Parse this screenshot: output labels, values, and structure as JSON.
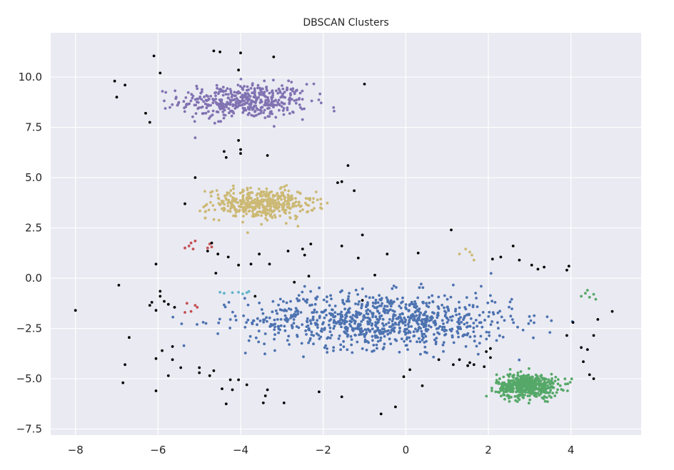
{
  "chart_data": {
    "type": "scatter",
    "title": "DBSCAN Clusters",
    "xlabel": "",
    "ylabel": "",
    "xlim": [
      -8.6,
      5.7
    ],
    "ylim": [
      -7.8,
      12.2
    ],
    "xticks": [
      -8,
      -6,
      -4,
      -2,
      0,
      2,
      4
    ],
    "yticks": [
      -7.5,
      -5.0,
      -2.5,
      0.0,
      2.5,
      5.0,
      7.5,
      10.0
    ],
    "xtick_labels": [
      "−8",
      "−6",
      "−4",
      "−2",
      "0",
      "2",
      "4"
    ],
    "ytick_labels": [
      "−7.5",
      "−5.0",
      "−2.5",
      "0.0",
      "2.5",
      "5.0",
      "7.5",
      "10.0"
    ],
    "grid": true,
    "background": "#eaeaf2",
    "legend": "none",
    "clusters": [
      {
        "color": "#8172b2",
        "center": [
          -3.9,
          8.8
        ],
        "spread": [
          1.25,
          0.7
        ],
        "count": 450,
        "xrange": [
          -6.4,
          -1.5
        ],
        "yrange": [
          6.7,
          10.7
        ]
      },
      {
        "color": "#ccb974",
        "center": [
          -3.5,
          3.7
        ],
        "spread": [
          1.05,
          0.6
        ],
        "count": 420,
        "xrange": [
          -5.0,
          -1.9
        ],
        "yrange": [
          2.1,
          5.7
        ]
      },
      {
        "color": "#4c72b0",
        "center": [
          -0.6,
          -2.1
        ],
        "spread": [
          2.6,
          1.1
        ],
        "count": 900,
        "xrange": [
          -5.7,
          4.1
        ],
        "yrange": [
          -5.9,
          0.8
        ]
      },
      {
        "color": "#55a868",
        "center": [
          2.95,
          -5.35
        ],
        "spread": [
          0.6,
          0.48
        ],
        "count": 500,
        "xrange": [
          1.0,
          4.6
        ],
        "yrange": [
          -6.8,
          -3.9
        ]
      }
    ],
    "small_clusters": [
      {
        "color": "#c44e52",
        "points": [
          [
            -5.35,
            1.5
          ],
          [
            -5.25,
            1.6
          ],
          [
            -5.2,
            1.75
          ],
          [
            -5.1,
            1.85
          ],
          [
            -5.15,
            1.45
          ],
          [
            -4.8,
            1.5
          ],
          [
            -4.75,
            1.7
          ],
          [
            -4.7,
            1.55
          ],
          [
            -5.3,
            -1.25
          ],
          [
            -5.35,
            -1.7
          ],
          [
            -5.2,
            -1.65
          ],
          [
            -5.1,
            -1.35
          ],
          [
            -5.05,
            -1.45
          ]
        ]
      },
      {
        "color": "#64b5cd",
        "points": [
          [
            -4.5,
            -0.7
          ],
          [
            -4.4,
            -0.75
          ],
          [
            -4.2,
            -0.72
          ],
          [
            -4.05,
            -0.7
          ],
          [
            -3.95,
            -0.78
          ],
          [
            -3.85,
            -0.72
          ],
          [
            -3.8,
            -0.66
          ]
        ]
      },
      {
        "color": "#ccb974",
        "points": [
          [
            1.3,
            1.2
          ],
          [
            1.45,
            1.45
          ],
          [
            1.55,
            1.3
          ],
          [
            1.6,
            1.15
          ],
          [
            1.65,
            0.9
          ]
        ]
      },
      {
        "color": "#55a868",
        "points": [
          [
            4.25,
            -0.9
          ],
          [
            4.35,
            -0.75
          ],
          [
            4.4,
            -0.6
          ],
          [
            4.45,
            -0.95
          ],
          [
            4.55,
            -0.8
          ],
          [
            4.6,
            -1.05
          ]
        ]
      }
    ],
    "noise": {
      "color": "#000000",
      "points": [
        [
          -8.0,
          -1.6
        ],
        [
          -7.05,
          9.8
        ],
        [
          -7.0,
          9.0
        ],
        [
          -6.8,
          9.6
        ],
        [
          -6.95,
          -0.35
        ],
        [
          -6.7,
          -2.95
        ],
        [
          -6.85,
          -5.2
        ],
        [
          -6.8,
          -4.3
        ],
        [
          -6.1,
          11.05
        ],
        [
          -5.95,
          10.2
        ],
        [
          -6.3,
          8.2
        ],
        [
          -6.2,
          7.75
        ],
        [
          -6.05,
          0.7
        ],
        [
          -6.2,
          -1.35
        ],
        [
          -6.15,
          -1.2
        ],
        [
          -6.05,
          -1.6
        ],
        [
          -5.95,
          -0.65
        ],
        [
          -5.95,
          -0.9
        ],
        [
          -5.85,
          -1.15
        ],
        [
          -5.75,
          -1.3
        ],
        [
          -5.6,
          -1.45
        ],
        [
          -6.05,
          -4.0
        ],
        [
          -5.9,
          -3.6
        ],
        [
          -5.65,
          -3.4
        ],
        [
          -5.65,
          -4.05
        ],
        [
          -5.45,
          -4.45
        ],
        [
          -5.75,
          -4.85
        ],
        [
          -6.05,
          -5.6
        ],
        [
          -5.1,
          5.0
        ],
        [
          -5.35,
          3.7
        ],
        [
          -4.7,
          1.75
        ],
        [
          -4.8,
          1.35
        ],
        [
          -4.6,
          0.25
        ],
        [
          -4.55,
          1.2
        ],
        [
          -4.3,
          1.05
        ],
        [
          -4.05,
          0.65
        ],
        [
          -5.0,
          -4.45
        ],
        [
          -5.0,
          -4.7
        ],
        [
          -4.75,
          -4.85
        ],
        [
          -4.65,
          -4.6
        ],
        [
          -4.45,
          -5.5
        ],
        [
          -4.35,
          -6.25
        ],
        [
          -4.2,
          -5.55
        ],
        [
          -4.25,
          -5.05
        ],
        [
          -4.05,
          -5.05
        ],
        [
          -3.85,
          -5.3
        ],
        [
          -3.35,
          -5.55
        ],
        [
          -3.4,
          -5.85
        ],
        [
          -3.45,
          -6.2
        ],
        [
          -2.95,
          -6.2
        ],
        [
          -4.5,
          11.25
        ],
        [
          -4.65,
          11.3
        ],
        [
          -4.0,
          11.2
        ],
        [
          -4.05,
          10.35
        ],
        [
          -3.2,
          11.0
        ],
        [
          -4.05,
          6.85
        ],
        [
          -4.4,
          6.3
        ],
        [
          -4.35,
          6.0
        ],
        [
          -4.0,
          6.4
        ],
        [
          -4.0,
          6.2
        ],
        [
          -3.35,
          6.1
        ],
        [
          -3.55,
          1.2
        ],
        [
          -3.75,
          0.7
        ],
        [
          -2.85,
          1.35
        ],
        [
          -2.5,
          1.45
        ],
        [
          -2.45,
          1.15
        ],
        [
          -2.3,
          1.7
        ],
        [
          -2.35,
          0.1
        ],
        [
          -1.65,
          4.75
        ],
        [
          -1.55,
          4.8
        ],
        [
          -1.4,
          5.6
        ],
        [
          -1.25,
          4.35
        ],
        [
          -1.0,
          9.65
        ],
        [
          -1.05,
          2.15
        ],
        [
          -1.55,
          1.6
        ],
        [
          -1.15,
          1.0
        ],
        [
          -0.75,
          0.15
        ],
        [
          -0.45,
          1.2
        ],
        [
          -1.55,
          -5.9
        ],
        [
          -2.1,
          -5.65
        ],
        [
          -0.6,
          -6.75
        ],
        [
          -0.25,
          -6.4
        ],
        [
          -0.05,
          -4.9
        ],
        [
          0.1,
          -4.55
        ],
        [
          0.3,
          1.25
        ],
        [
          0.4,
          -5.35
        ],
        [
          1.1,
          2.4
        ],
        [
          1.15,
          -4.3
        ],
        [
          1.3,
          -4.05
        ],
        [
          1.55,
          -4.2
        ],
        [
          1.5,
          -4.35
        ],
        [
          1.65,
          -4.3
        ],
        [
          1.9,
          -4.4
        ],
        [
          1.95,
          -3.65
        ],
        [
          2.05,
          -3.5
        ],
        [
          2.05,
          -3.95
        ],
        [
          2.1,
          0.95
        ],
        [
          2.3,
          1.05
        ],
        [
          2.6,
          1.6
        ],
        [
          2.75,
          0.9
        ],
        [
          3.05,
          0.65
        ],
        [
          3.2,
          0.45
        ],
        [
          3.35,
          0.55
        ],
        [
          3.9,
          0.4
        ],
        [
          3.95,
          0.6
        ],
        [
          3.9,
          -2.85
        ],
        [
          4.05,
          -2.2
        ],
        [
          4.25,
          -3.45
        ],
        [
          4.3,
          -4.15
        ],
        [
          4.4,
          -3.55
        ],
        [
          4.45,
          -4.8
        ],
        [
          4.55,
          -5.0
        ],
        [
          4.55,
          -2.85
        ],
        [
          4.65,
          -2.05
        ],
        [
          5.0,
          -1.65
        ],
        [
          -3.65,
          -0.9
        ],
        [
          -3.3,
          0.7
        ],
        [
          0.8,
          -4.05
        ],
        [
          -1.05,
          -1.1
        ],
        [
          -2.7,
          -0.2
        ]
      ]
    }
  }
}
